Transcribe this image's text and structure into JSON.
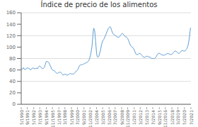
{
  "chart_data": {
    "type": "line",
    "title": "Índice de precio de los alimentos",
    "color": "#5B9BD5",
    "ylim": [
      0,
      160
    ],
    "yticks": [
      0,
      20,
      40,
      60,
      80,
      100,
      120,
      140,
      160
    ],
    "grid": true,
    "categories": [
      "5/1990",
      null,
      null,
      null,
      null,
      null,
      null,
      null,
      null,
      null,
      null,
      null,
      null,
      "9/1991",
      null,
      null,
      null,
      null,
      null,
      null,
      null,
      null,
      null,
      null,
      null,
      null,
      null,
      "5/1992",
      null,
      null,
      null,
      null,
      null,
      null,
      null,
      null,
      null,
      null,
      null,
      null,
      "7/1993",
      null,
      null,
      null,
      null,
      null,
      null,
      null,
      null,
      null,
      null,
      null,
      null,
      null,
      "9/1994",
      null,
      null,
      null,
      null,
      null,
      null,
      null,
      null,
      null,
      null,
      null,
      null,
      "11/1995",
      null,
      null,
      null,
      null,
      null,
      null,
      null,
      null,
      null,
      null,
      null,
      null,
      null,
      "1/1997",
      null,
      null,
      null,
      null,
      null,
      null,
      null,
      null,
      null,
      null,
      null,
      null,
      "3/1998",
      null,
      null,
      null,
      null,
      null,
      null,
      null,
      null,
      null,
      null,
      null,
      null,
      null,
      "5/1999",
      null,
      null,
      null,
      null,
      null,
      null,
      null,
      null,
      null,
      null,
      null,
      null,
      "7/2000",
      null,
      null,
      null,
      null,
      null,
      null,
      null,
      null,
      null,
      null,
      null,
      null,
      null,
      "9/2001",
      null,
      null,
      null,
      null,
      null,
      null,
      null,
      null,
      null,
      null,
      null,
      null,
      "11/2002",
      null,
      null,
      null,
      null,
      null,
      null,
      null,
      null,
      null,
      null,
      null,
      null,
      null,
      "1/2004",
      null,
      null,
      null,
      null,
      null,
      null,
      null,
      null,
      null,
      null,
      null,
      null,
      "3/2005",
      null,
      null,
      null,
      null,
      null,
      null,
      null,
      null,
      null,
      null,
      null,
      null,
      null,
      "5/2006",
      null,
      null,
      null,
      null,
      null,
      null,
      null,
      null,
      null,
      null,
      null,
      null,
      "7/2007",
      null,
      null,
      null,
      null,
      null,
      null,
      null,
      null,
      null,
      null,
      null,
      null,
      null,
      "9/2008",
      null,
      null,
      null,
      null,
      null,
      null,
      null,
      null,
      null,
      null,
      null,
      null,
      "11/2009",
      null,
      null,
      null,
      null,
      null,
      null,
      null,
      null,
      null,
      null,
      null,
      null,
      null,
      "1/2011",
      null,
      null,
      null,
      null,
      null,
      null,
      null,
      null,
      null,
      null,
      null,
      null,
      "3/2012",
      null,
      null,
      null,
      null,
      null,
      null,
      null,
      null,
      null,
      null,
      null,
      null,
      null,
      "5/2013",
      null,
      null,
      null,
      null,
      null,
      null,
      null,
      null,
      null,
      null,
      null,
      null,
      "7/2014",
      null,
      null,
      null,
      null,
      null,
      null,
      null,
      null,
      null,
      null,
      null,
      null,
      null,
      "9/2015",
      null,
      null,
      null,
      null,
      null,
      null,
      null,
      null,
      null,
      null,
      null,
      null,
      "11/2016",
      null,
      null,
      null,
      null,
      null,
      null,
      null,
      null,
      null,
      null,
      null,
      null,
      null,
      "1/2018",
      null,
      null,
      null,
      null,
      null,
      null,
      null,
      null,
      null,
      null,
      null,
      null,
      "3/2019",
      null,
      null,
      null,
      null,
      null,
      null,
      null,
      null,
      null,
      null,
      null,
      null,
      null,
      "5/2020",
      null,
      null,
      null,
      null,
      null,
      null,
      null,
      null,
      null,
      null,
      null,
      null,
      null,
      "7/2021"
    ],
    "values": [
      63,
      62,
      61,
      62,
      63,
      64,
      62,
      61,
      61,
      61,
      62,
      62,
      63,
      63,
      64,
      63,
      63,
      62,
      62,
      61,
      60,
      61,
      62,
      62,
      63,
      64,
      63,
      62,
      62,
      63,
      62,
      62,
      63,
      63,
      63,
      62,
      64,
      65,
      66,
      67,
      67,
      66,
      65,
      64,
      64,
      63,
      62,
      62,
      63,
      64,
      65,
      68,
      70,
      73,
      75,
      75,
      75,
      74,
      74,
      73,
      72,
      70,
      68,
      67,
      65,
      62,
      61,
      60,
      60,
      59,
      59,
      59,
      58,
      57,
      56,
      55,
      55,
      54,
      54,
      55,
      55,
      56,
      56,
      56,
      56,
      56,
      55,
      54,
      53,
      52,
      51,
      51,
      52,
      52,
      53,
      53,
      52,
      51,
      51,
      51,
      51,
      52,
      52,
      53,
      53,
      54,
      54,
      53,
      53,
      53,
      53,
      53,
      53,
      53,
      54,
      55,
      56,
      57,
      58,
      58,
      59,
      60,
      61,
      63,
      65,
      67,
      68,
      69,
      69,
      69,
      69,
      69,
      70,
      70,
      70,
      71,
      71,
      72,
      72,
      72,
      73,
      73,
      74,
      74,
      75,
      76,
      78,
      80,
      83,
      86,
      90,
      95,
      100,
      108,
      118,
      128,
      133,
      131,
      128,
      120,
      110,
      100,
      90,
      85,
      83,
      82,
      83,
      84,
      87,
      90,
      93,
      97,
      101,
      105,
      108,
      110,
      112,
      113,
      114,
      116,
      118,
      120,
      122,
      124,
      126,
      128,
      130,
      132,
      133,
      134,
      135,
      136,
      135,
      133,
      130,
      128,
      126,
      124,
      123,
      122,
      122,
      121,
      120,
      120,
      119,
      119,
      118,
      118,
      117,
      117,
      117,
      118,
      119,
      120,
      121,
      122,
      123,
      124,
      124,
      123,
      122,
      121,
      120,
      119,
      118,
      118,
      118,
      117,
      116,
      115,
      113,
      111,
      109,
      107,
      105,
      103,
      102,
      101,
      100,
      100,
      99,
      98,
      97,
      95,
      93,
      91,
      89,
      88,
      87,
      87,
      87,
      87,
      88,
      88,
      89,
      89,
      89,
      88,
      87,
      86,
      85,
      84,
      83,
      83,
      82,
      82,
      82,
      83,
      83,
      84,
      84,
      84,
      84,
      83,
      83,
      83,
      83,
      82,
      82,
      81,
      80,
      80,
      80,
      80,
      80,
      80,
      80,
      80,
      81,
      82,
      83,
      84,
      86,
      87,
      88,
      89,
      89,
      89,
      89,
      88,
      88,
      87,
      87,
      86,
      86,
      86,
      86,
      86,
      86,
      86,
      87,
      87,
      88,
      88,
      89,
      89,
      89,
      88,
      88,
      88,
      87,
      87,
      87,
      87,
      88,
      88,
      89,
      90,
      91,
      92,
      93,
      93,
      93,
      93,
      92,
      91,
      90,
      90,
      89,
      89,
      89,
      90,
      91,
      92,
      93,
      93,
      94,
      94,
      94,
      93,
      93,
      93,
      93,
      94,
      95,
      96,
      97,
      99,
      101,
      104,
      108,
      113,
      119,
      127,
      133,
      134
    ]
  }
}
